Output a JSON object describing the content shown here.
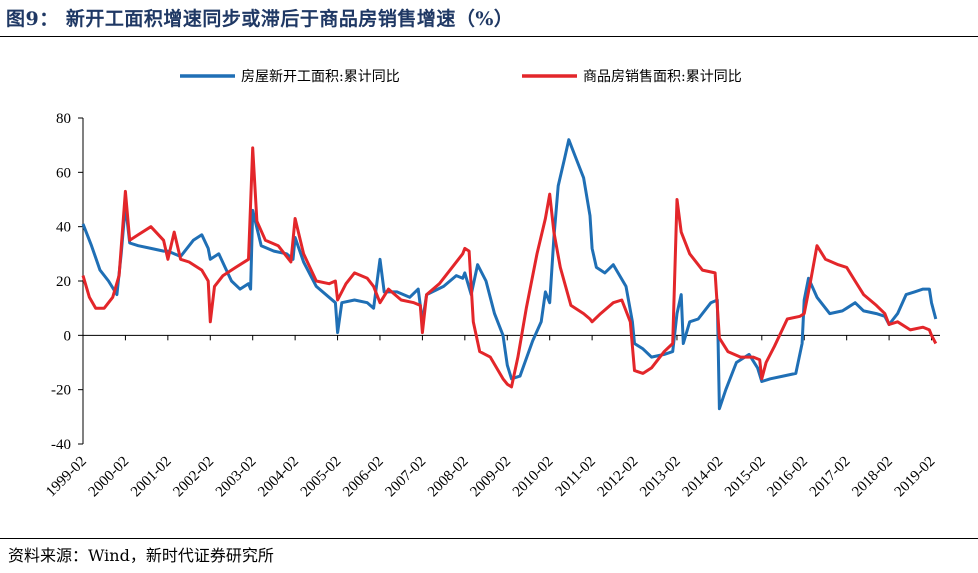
{
  "title": "图9： 新开工面积增速同步或滞后于商品房销售增速（%）",
  "source": "资料来源：Wind，新时代证券研究所",
  "chart_data": {
    "type": "line",
    "ylim": [
      -40,
      80
    ],
    "yticks": [
      -40,
      -20,
      0,
      20,
      40,
      60,
      80
    ],
    "x_range": [
      1999.0,
      2019.2
    ],
    "xticks": [
      {
        "label": "1999-02",
        "t": 1999.0
      },
      {
        "label": "2000-02",
        "t": 2000.0
      },
      {
        "label": "2001-02",
        "t": 2001.0
      },
      {
        "label": "2002-02",
        "t": 2002.0
      },
      {
        "label": "2003-02",
        "t": 2003.0
      },
      {
        "label": "2004-02",
        "t": 2004.0
      },
      {
        "label": "2005-02",
        "t": 2005.0
      },
      {
        "label": "2006-02",
        "t": 2006.0
      },
      {
        "label": "2007-02",
        "t": 2007.0
      },
      {
        "label": "2008-02",
        "t": 2008.0
      },
      {
        "label": "2009-02",
        "t": 2009.0
      },
      {
        "label": "2010-02",
        "t": 2010.0
      },
      {
        "label": "2011-02",
        "t": 2011.0
      },
      {
        "label": "2012-02",
        "t": 2012.0
      },
      {
        "label": "2013-02",
        "t": 2013.0
      },
      {
        "label": "2014-02",
        "t": 2014.0
      },
      {
        "label": "2015-02",
        "t": 2015.0
      },
      {
        "label": "2016-02",
        "t": 2016.0
      },
      {
        "label": "2017-02",
        "t": 2017.0
      },
      {
        "label": "2018-02",
        "t": 2018.0
      },
      {
        "label": "2019-02",
        "t": 2019.0
      }
    ],
    "series": [
      {
        "name": "房屋新开工面积:累计同比",
        "color": "#1f6fb5",
        "points": [
          [
            1999.0,
            41
          ],
          [
            1999.2,
            33
          ],
          [
            1999.4,
            24
          ],
          [
            1999.6,
            20
          ],
          [
            1999.8,
            15
          ],
          [
            1999.9,
            30
          ],
          [
            2000.0,
            48
          ],
          [
            2000.1,
            34
          ],
          [
            2000.3,
            33
          ],
          [
            2000.6,
            32
          ],
          [
            2000.9,
            31
          ],
          [
            2001.0,
            31
          ],
          [
            2001.3,
            29
          ],
          [
            2001.6,
            35
          ],
          [
            2001.8,
            37
          ],
          [
            2001.95,
            32
          ],
          [
            2002.0,
            28
          ],
          [
            2002.2,
            30
          ],
          [
            2002.35,
            25
          ],
          [
            2002.5,
            20
          ],
          [
            2002.7,
            17
          ],
          [
            2002.9,
            19
          ],
          [
            2002.95,
            17
          ],
          [
            2003.0,
            46
          ],
          [
            2003.2,
            33
          ],
          [
            2003.5,
            31
          ],
          [
            2003.8,
            30
          ],
          [
            2003.95,
            28
          ],
          [
            2004.0,
            36
          ],
          [
            2004.2,
            27
          ],
          [
            2004.5,
            18
          ],
          [
            2004.8,
            14
          ],
          [
            2004.95,
            12
          ],
          [
            2005.0,
            1
          ],
          [
            2005.1,
            12
          ],
          [
            2005.4,
            13
          ],
          [
            2005.7,
            12
          ],
          [
            2005.85,
            10
          ],
          [
            2006.0,
            28
          ],
          [
            2006.1,
            16
          ],
          [
            2006.4,
            16
          ],
          [
            2006.7,
            14
          ],
          [
            2006.9,
            17
          ],
          [
            2007.0,
            5
          ],
          [
            2007.1,
            15
          ],
          [
            2007.5,
            18
          ],
          [
            2007.8,
            22
          ],
          [
            2007.95,
            21
          ],
          [
            2008.0,
            23
          ],
          [
            2008.15,
            15
          ],
          [
            2008.3,
            26
          ],
          [
            2008.5,
            20
          ],
          [
            2008.7,
            8
          ],
          [
            2008.9,
            0
          ],
          [
            2009.0,
            -11
          ],
          [
            2009.1,
            -16
          ],
          [
            2009.3,
            -15
          ],
          [
            2009.6,
            -2
          ],
          [
            2009.8,
            5
          ],
          [
            2009.9,
            16
          ],
          [
            2010.0,
            12
          ],
          [
            2010.1,
            36
          ],
          [
            2010.2,
            55
          ],
          [
            2010.35,
            65
          ],
          [
            2010.45,
            72
          ],
          [
            2010.6,
            66
          ],
          [
            2010.8,
            58
          ],
          [
            2010.95,
            44
          ],
          [
            2011.0,
            32
          ],
          [
            2011.1,
            25
          ],
          [
            2011.3,
            23
          ],
          [
            2011.5,
            26
          ],
          [
            2011.8,
            18
          ],
          [
            2011.95,
            5
          ],
          [
            2012.0,
            -3
          ],
          [
            2012.2,
            -5
          ],
          [
            2012.4,
            -8
          ],
          [
            2012.7,
            -7
          ],
          [
            2012.9,
            -6
          ],
          [
            2013.0,
            8
          ],
          [
            2013.1,
            15
          ],
          [
            2013.15,
            -3
          ],
          [
            2013.3,
            5
          ],
          [
            2013.5,
            6
          ],
          [
            2013.8,
            12
          ],
          [
            2013.95,
            13
          ],
          [
            2014.0,
            -27
          ],
          [
            2014.15,
            -20
          ],
          [
            2014.4,
            -10
          ],
          [
            2014.7,
            -7
          ],
          [
            2014.9,
            -12
          ],
          [
            2015.0,
            -17
          ],
          [
            2015.2,
            -16
          ],
          [
            2015.5,
            -15
          ],
          [
            2015.8,
            -14
          ],
          [
            2015.95,
            -3
          ],
          [
            2016.0,
            13
          ],
          [
            2016.1,
            21
          ],
          [
            2016.3,
            14
          ],
          [
            2016.6,
            8
          ],
          [
            2016.9,
            9
          ],
          [
            2017.0,
            10
          ],
          [
            2017.2,
            12
          ],
          [
            2017.4,
            9
          ],
          [
            2017.7,
            8
          ],
          [
            2017.9,
            7
          ],
          [
            2018.0,
            4
          ],
          [
            2018.2,
            8
          ],
          [
            2018.4,
            15
          ],
          [
            2018.6,
            16
          ],
          [
            2018.8,
            17
          ],
          [
            2018.95,
            17
          ],
          [
            2019.0,
            12
          ],
          [
            2019.1,
            6
          ]
        ]
      },
      {
        "name": "商品房销售面积:累计同比",
        "color": "#e3262a",
        "points": [
          [
            1999.0,
            22
          ],
          [
            1999.15,
            14
          ],
          [
            1999.3,
            10
          ],
          [
            1999.5,
            10
          ],
          [
            1999.7,
            14
          ],
          [
            1999.85,
            22
          ],
          [
            2000.0,
            53
          ],
          [
            2000.1,
            35
          ],
          [
            2000.3,
            37
          ],
          [
            2000.6,
            40
          ],
          [
            2000.9,
            35
          ],
          [
            2001.0,
            28
          ],
          [
            2001.15,
            38
          ],
          [
            2001.3,
            28
          ],
          [
            2001.5,
            27
          ],
          [
            2001.8,
            24
          ],
          [
            2001.95,
            20
          ],
          [
            2002.0,
            5
          ],
          [
            2002.1,
            18
          ],
          [
            2002.3,
            22
          ],
          [
            2002.6,
            25
          ],
          [
            2002.9,
            28
          ],
          [
            2003.0,
            69
          ],
          [
            2003.1,
            42
          ],
          [
            2003.3,
            35
          ],
          [
            2003.6,
            33
          ],
          [
            2003.9,
            27
          ],
          [
            2004.0,
            43
          ],
          [
            2004.2,
            30
          ],
          [
            2004.5,
            20
          ],
          [
            2004.8,
            19
          ],
          [
            2004.95,
            20
          ],
          [
            2005.0,
            13
          ],
          [
            2005.2,
            19
          ],
          [
            2005.4,
            23
          ],
          [
            2005.7,
            21
          ],
          [
            2005.85,
            18
          ],
          [
            2006.0,
            12
          ],
          [
            2006.2,
            17
          ],
          [
            2006.5,
            13
          ],
          [
            2006.8,
            12
          ],
          [
            2006.95,
            11
          ],
          [
            2007.0,
            1
          ],
          [
            2007.1,
            15
          ],
          [
            2007.4,
            19
          ],
          [
            2007.7,
            25
          ],
          [
            2007.95,
            30
          ],
          [
            2008.0,
            32
          ],
          [
            2008.1,
            31
          ],
          [
            2008.2,
            5
          ],
          [
            2008.35,
            -6
          ],
          [
            2008.6,
            -8
          ],
          [
            2008.9,
            -16
          ],
          [
            2009.0,
            -18
          ],
          [
            2009.1,
            -19
          ],
          [
            2009.25,
            -8
          ],
          [
            2009.45,
            10
          ],
          [
            2009.7,
            30
          ],
          [
            2009.9,
            43
          ],
          [
            2010.0,
            52
          ],
          [
            2010.1,
            38
          ],
          [
            2010.25,
            25
          ],
          [
            2010.5,
            11
          ],
          [
            2010.8,
            8
          ],
          [
            2010.95,
            6
          ],
          [
            2011.0,
            5
          ],
          [
            2011.2,
            8
          ],
          [
            2011.5,
            12
          ],
          [
            2011.7,
            13
          ],
          [
            2011.9,
            5
          ],
          [
            2012.0,
            -13
          ],
          [
            2012.2,
            -14
          ],
          [
            2012.4,
            -12
          ],
          [
            2012.7,
            -6
          ],
          [
            2012.9,
            -3
          ],
          [
            2013.0,
            50
          ],
          [
            2013.1,
            38
          ],
          [
            2013.3,
            30
          ],
          [
            2013.6,
            24
          ],
          [
            2013.9,
            23
          ],
          [
            2014.0,
            -1
          ],
          [
            2014.2,
            -6
          ],
          [
            2014.5,
            -8
          ],
          [
            2014.8,
            -8
          ],
          [
            2014.95,
            -9
          ],
          [
            2015.0,
            -16
          ],
          [
            2015.1,
            -10
          ],
          [
            2015.3,
            -4
          ],
          [
            2015.6,
            6
          ],
          [
            2015.9,
            7
          ],
          [
            2016.0,
            8
          ],
          [
            2016.15,
            20
          ],
          [
            2016.3,
            33
          ],
          [
            2016.5,
            28
          ],
          [
            2016.8,
            26
          ],
          [
            2017.0,
            25
          ],
          [
            2017.2,
            20
          ],
          [
            2017.4,
            15
          ],
          [
            2017.7,
            11
          ],
          [
            2017.9,
            8
          ],
          [
            2018.0,
            4
          ],
          [
            2018.2,
            5
          ],
          [
            2018.5,
            2
          ],
          [
            2018.8,
            3
          ],
          [
            2018.95,
            2
          ],
          [
            2019.0,
            0
          ],
          [
            2019.1,
            -3
          ]
        ]
      }
    ]
  }
}
